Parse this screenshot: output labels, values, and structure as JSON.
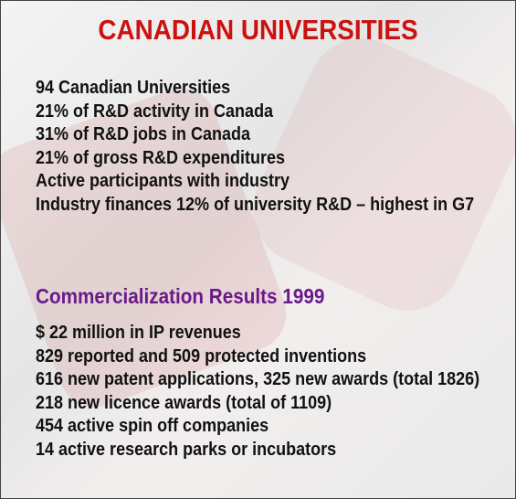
{
  "title": "CANADIAN UNIVERSITIES",
  "facts": [
    "94 Canadian Universities",
    "21% of R&D activity in Canada",
    "31% of R&D jobs in Canada",
    "21% of gross R&D expenditures",
    "Active participants with industry",
    "Industry finances 12% of university R&D – highest in G7"
  ],
  "section": {
    "title": "Commercialization Results 1999",
    "items": [
      "$ 22 million in IP revenues",
      "829 reported and 509 protected inventions",
      "616 new patent applications, 325 new awards (total 1826)",
      "218 new licence awards (total of 1109)",
      "454 active spin off companies",
      "14 active research parks or incubators"
    ]
  }
}
